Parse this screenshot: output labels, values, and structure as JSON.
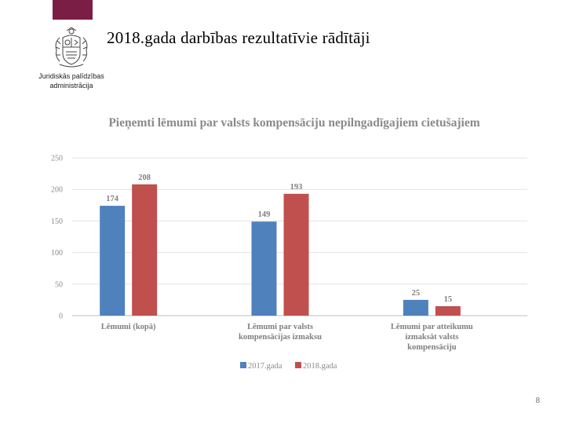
{
  "slide": {
    "title": "2018.gada darbības rezultatīvie rādītāji",
    "page_number": "8",
    "accent_color": "#7b1e46"
  },
  "logo": {
    "line1": "Juridiskās palīdzības",
    "line2": "administrācija"
  },
  "chart_data": {
    "type": "bar",
    "title": "Pieņemti lēmumi par valsts kompensāciju nepilngadīgajiem cietušajiem",
    "categories": [
      [
        "Lēmumi (kopā)"
      ],
      [
        "Lēmumi par valsts",
        "kompensācijas izmaksu"
      ],
      [
        "Lēmumi par atteikumu",
        "izmaksāt valsts",
        "kompensāciju"
      ]
    ],
    "series": [
      {
        "name": "2017.gada",
        "color": "#4f81bd",
        "values": [
          174,
          149,
          25
        ]
      },
      {
        "name": "2018.gada",
        "color": "#c0504d",
        "values": [
          208,
          193,
          15
        ]
      }
    ],
    "ylim": [
      0,
      250
    ],
    "yticks": [
      0,
      50,
      100,
      150,
      200,
      250
    ],
    "grid": true,
    "legend": "bottom"
  }
}
